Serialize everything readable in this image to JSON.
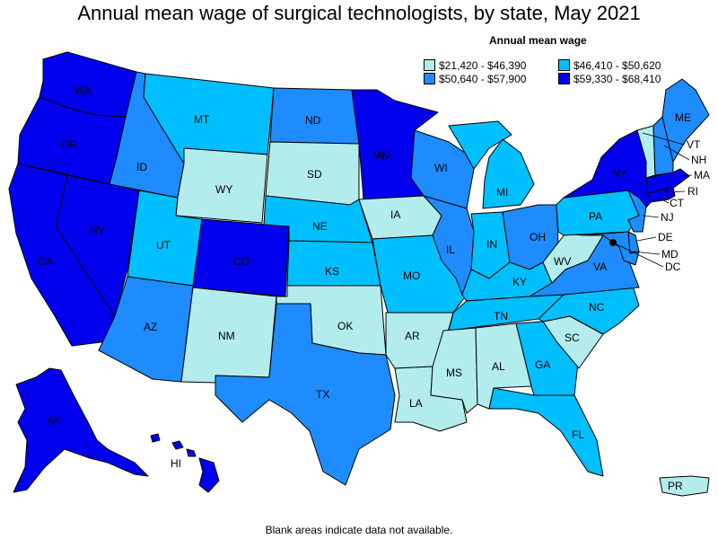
{
  "title": "Annual mean wage of surgical technologists, by state, May 2021",
  "legend": {
    "title": "Annual mean wage",
    "items": [
      {
        "label": "$21,420 - $46,390",
        "color": "#b3ecec"
      },
      {
        "label": "$46,410 - $50,620",
        "color": "#00bfff"
      },
      {
        "label": "$50,640 - $57,900",
        "color": "#1e8cff"
      },
      {
        "label": "$59,330 - $68,410",
        "color": "#0000ee"
      }
    ]
  },
  "footnote": "Blank areas indicate data not available.",
  "states": {
    "WA": {
      "label": "WA",
      "tier": 3
    },
    "OR": {
      "label": "OR",
      "tier": 3
    },
    "CA": {
      "label": "CA",
      "tier": 3
    },
    "NV": {
      "label": "NV",
      "tier": 3
    },
    "ID": {
      "label": "ID",
      "tier": 2
    },
    "MT": {
      "label": "MT",
      "tier": 1
    },
    "WY": {
      "label": "WY",
      "tier": 0
    },
    "UT": {
      "label": "UT",
      "tier": 1
    },
    "AZ": {
      "label": "AZ",
      "tier": 2
    },
    "CO": {
      "label": "CO",
      "tier": 3
    },
    "NM": {
      "label": "NM",
      "tier": 0
    },
    "ND": {
      "label": "ND",
      "tier": 2
    },
    "SD": {
      "label": "SD",
      "tier": 0
    },
    "NE": {
      "label": "NE",
      "tier": 1
    },
    "KS": {
      "label": "KS",
      "tier": 1
    },
    "OK": {
      "label": "OK",
      "tier": 0
    },
    "TX": {
      "label": "TX",
      "tier": 2
    },
    "MN": {
      "label": "MN",
      "tier": 3
    },
    "IA": {
      "label": "IA",
      "tier": 0
    },
    "MO": {
      "label": "MO",
      "tier": 1
    },
    "AR": {
      "label": "AR",
      "tier": 0
    },
    "LA": {
      "label": "LA",
      "tier": 0
    },
    "WI": {
      "label": "WI",
      "tier": 2
    },
    "IL": {
      "label": "IL",
      "tier": 2
    },
    "MI": {
      "label": "MI",
      "tier": 1
    },
    "IN": {
      "label": "IN",
      "tier": 1
    },
    "OH": {
      "label": "OH",
      "tier": 2
    },
    "KY": {
      "label": "KY",
      "tier": 1
    },
    "TN": {
      "label": "TN",
      "tier": 1
    },
    "MS": {
      "label": "MS",
      "tier": 0
    },
    "AL": {
      "label": "AL",
      "tier": 0
    },
    "GA": {
      "label": "GA",
      "tier": 1
    },
    "FL": {
      "label": "FL",
      "tier": 1
    },
    "SC": {
      "label": "SC",
      "tier": 0
    },
    "NC": {
      "label": "NC",
      "tier": 1
    },
    "VA": {
      "label": "VA",
      "tier": 2
    },
    "WV": {
      "label": "WV",
      "tier": 0
    },
    "PA": {
      "label": "PA",
      "tier": 1
    },
    "NY": {
      "label": "NY",
      "tier": 3
    },
    "NJ": {
      "label": "NJ",
      "tier": 2
    },
    "DE": {
      "label": "DE",
      "tier": 2
    },
    "MD": {
      "label": "MD",
      "tier": 2
    },
    "DC": {
      "label": "DC",
      "tier": 3
    },
    "CT": {
      "label": "CT",
      "tier": 3
    },
    "RI": {
      "label": "RI",
      "tier": 3
    },
    "MA": {
      "label": "MA",
      "tier": 3
    },
    "VT": {
      "label": "VT",
      "tier": 0
    },
    "NH": {
      "label": "NH",
      "tier": 2
    },
    "ME": {
      "label": "ME",
      "tier": 2
    },
    "AK": {
      "label": "AK",
      "tier": 3
    },
    "HI": {
      "label": "HI",
      "tier": 3
    },
    "PR": {
      "label": "PR",
      "tier": 0
    }
  }
}
